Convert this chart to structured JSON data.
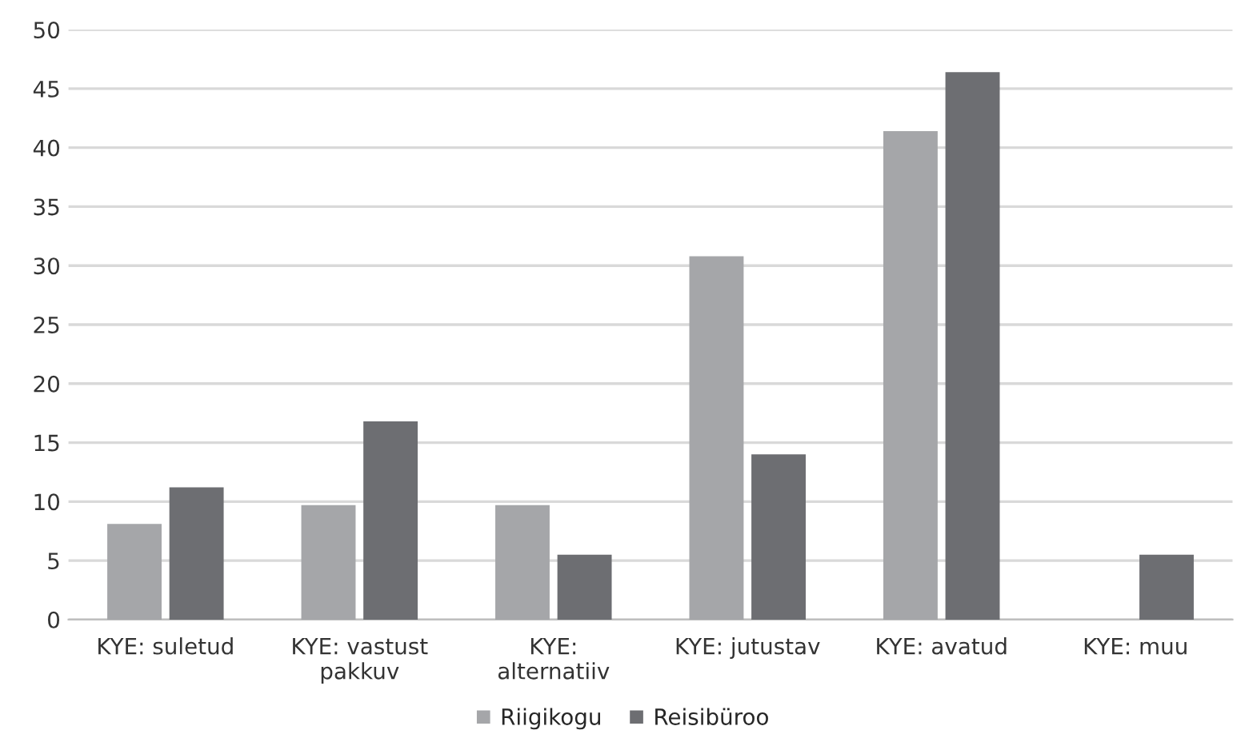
{
  "chart_data": {
    "type": "bar",
    "categories": [
      "KYE: suletud",
      "KYE: vastust pakkuv",
      "KYE: alternatiiv",
      "KYE: jutustav",
      "KYE: avatud",
      "KYE: muu"
    ],
    "series": [
      {
        "name": "Riigikogu",
        "color": "#a5a6a9",
        "values": [
          8.1,
          9.7,
          9.7,
          30.8,
          41.4,
          0
        ]
      },
      {
        "name": "Reisibüroo",
        "color": "#6d6e72",
        "values": [
          11.2,
          16.8,
          5.5,
          14.0,
          46.4,
          5.5
        ]
      }
    ],
    "ylim": [
      0,
      50
    ],
    "yticks": [
      0,
      5,
      10,
      15,
      20,
      25,
      30,
      35,
      40,
      45,
      50
    ],
    "grid": "y",
    "legend": "bottom"
  }
}
